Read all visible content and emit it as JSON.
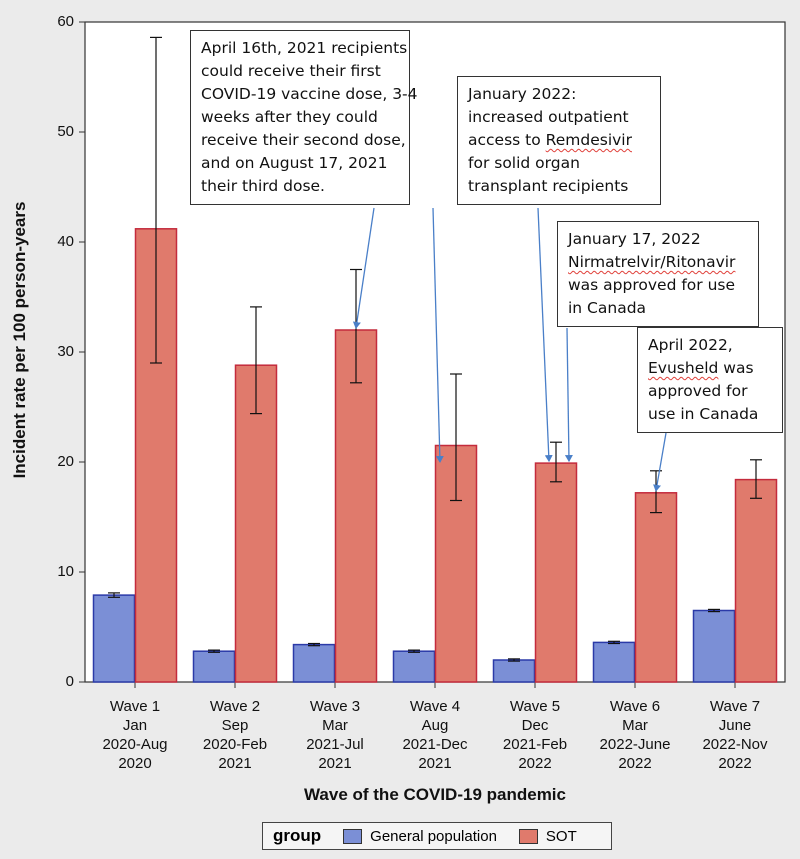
{
  "chart_data": {
    "type": "bar",
    "xlabel": "Wave of the COVID-19 pandemic",
    "ylabel": "Incident rate per 100 person-years",
    "ylim": [
      0,
      60
    ],
    "yticks": [
      0,
      10,
      20,
      30,
      40,
      50,
      60
    ],
    "categories": [
      [
        "Wave 1",
        "Jan",
        "2020-Aug",
        "2020"
      ],
      [
        "Wave 2",
        "Sep",
        "2020-Feb",
        "2021"
      ],
      [
        "Wave 3",
        "Mar",
        "2021-Jul",
        "2021"
      ],
      [
        "Wave 4",
        "Aug",
        "2021-Dec",
        "2021"
      ],
      [
        "Wave 5",
        "Dec",
        "2021-Feb",
        "2022"
      ],
      [
        "Wave 6",
        "Mar",
        "2022-June",
        "2022"
      ],
      [
        "Wave 7",
        "June",
        "2022-Nov",
        "2022"
      ]
    ],
    "series": [
      {
        "name": "General population",
        "color": "#7b8fd6",
        "stroke": "#2b3aa8",
        "values": [
          7.9,
          2.8,
          3.4,
          2.8,
          2.0,
          3.6,
          6.5
        ],
        "err_low": [
          7.7,
          2.7,
          3.3,
          2.7,
          1.9,
          3.5,
          6.4
        ],
        "err_high": [
          8.1,
          2.9,
          3.5,
          2.9,
          2.1,
          3.7,
          6.6
        ]
      },
      {
        "name": "SOT",
        "color": "#e07a6c",
        "stroke": "#c42b3c",
        "values": [
          41.2,
          28.8,
          32.0,
          21.5,
          19.9,
          17.2,
          18.4
        ],
        "err_low": [
          29.0,
          24.4,
          27.2,
          16.5,
          18.2,
          15.4,
          16.7
        ],
        "err_high": [
          58.6,
          34.1,
          37.5,
          28.0,
          21.8,
          19.2,
          20.2
        ]
      }
    ],
    "legend": {
      "title": "group",
      "position": "bottom"
    },
    "annotations": [
      {
        "id": "ann1",
        "lines": [
          "April 16th, 2021 recipients",
          "could receive their first",
          "COVID-19 vaccine dose, 3-4",
          "weeks after they could",
          "receive their second dose,",
          "and on August 17, 2021",
          "their third dose."
        ]
      },
      {
        "id": "ann2",
        "lines": [
          "January 2022:",
          "increased outpatient",
          "access to Remdesivir",
          "for solid organ",
          "transplant recipients"
        ],
        "wavy": "Remdesivir"
      },
      {
        "id": "ann3",
        "lines": [
          "January 17, 2022",
          "Nirmatrelvir/Ritonavir",
          "was approved for use",
          "in Canada"
        ],
        "wavy": "Nirmatrelvir/Ritonavir"
      },
      {
        "id": "ann4",
        "lines": [
          "April 2022,",
          "Evusheld was",
          "approved for",
          "use in Canada"
        ],
        "wavy": "Evusheld"
      }
    ]
  }
}
